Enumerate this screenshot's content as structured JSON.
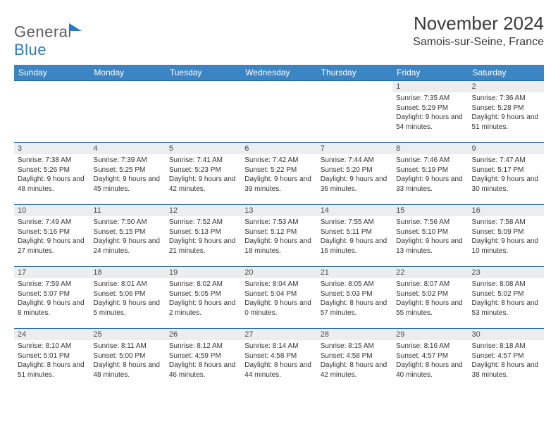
{
  "logo": {
    "general": "General",
    "blue": "Blue",
    "triangle_color": "#2a7ac0"
  },
  "title": "November 2024",
  "location": "Samois-sur-Seine, France",
  "header_bg": "#3b85c4",
  "header_fg": "#ffffff",
  "daynum_bg": "#ebedef",
  "border_color": "#2a6aa8",
  "day_headers": [
    "Sunday",
    "Monday",
    "Tuesday",
    "Wednesday",
    "Thursday",
    "Friday",
    "Saturday"
  ],
  "weeks": [
    [
      null,
      null,
      null,
      null,
      null,
      {
        "n": "1",
        "sr": "7:35 AM",
        "ss": "5:29 PM",
        "dl": "9 hours and 54 minutes."
      },
      {
        "n": "2",
        "sr": "7:36 AM",
        "ss": "5:28 PM",
        "dl": "9 hours and 51 minutes."
      }
    ],
    [
      {
        "n": "3",
        "sr": "7:38 AM",
        "ss": "5:26 PM",
        "dl": "9 hours and 48 minutes."
      },
      {
        "n": "4",
        "sr": "7:39 AM",
        "ss": "5:25 PM",
        "dl": "9 hours and 45 minutes."
      },
      {
        "n": "5",
        "sr": "7:41 AM",
        "ss": "5:23 PM",
        "dl": "9 hours and 42 minutes."
      },
      {
        "n": "6",
        "sr": "7:42 AM",
        "ss": "5:22 PM",
        "dl": "9 hours and 39 minutes."
      },
      {
        "n": "7",
        "sr": "7:44 AM",
        "ss": "5:20 PM",
        "dl": "9 hours and 36 minutes."
      },
      {
        "n": "8",
        "sr": "7:46 AM",
        "ss": "5:19 PM",
        "dl": "9 hours and 33 minutes."
      },
      {
        "n": "9",
        "sr": "7:47 AM",
        "ss": "5:17 PM",
        "dl": "9 hours and 30 minutes."
      }
    ],
    [
      {
        "n": "10",
        "sr": "7:49 AM",
        "ss": "5:16 PM",
        "dl": "9 hours and 27 minutes."
      },
      {
        "n": "11",
        "sr": "7:50 AM",
        "ss": "5:15 PM",
        "dl": "9 hours and 24 minutes."
      },
      {
        "n": "12",
        "sr": "7:52 AM",
        "ss": "5:13 PM",
        "dl": "9 hours and 21 minutes."
      },
      {
        "n": "13",
        "sr": "7:53 AM",
        "ss": "5:12 PM",
        "dl": "9 hours and 18 minutes."
      },
      {
        "n": "14",
        "sr": "7:55 AM",
        "ss": "5:11 PM",
        "dl": "9 hours and 16 minutes."
      },
      {
        "n": "15",
        "sr": "7:56 AM",
        "ss": "5:10 PM",
        "dl": "9 hours and 13 minutes."
      },
      {
        "n": "16",
        "sr": "7:58 AM",
        "ss": "5:09 PM",
        "dl": "9 hours and 10 minutes."
      }
    ],
    [
      {
        "n": "17",
        "sr": "7:59 AM",
        "ss": "5:07 PM",
        "dl": "9 hours and 8 minutes."
      },
      {
        "n": "18",
        "sr": "8:01 AM",
        "ss": "5:06 PM",
        "dl": "9 hours and 5 minutes."
      },
      {
        "n": "19",
        "sr": "8:02 AM",
        "ss": "5:05 PM",
        "dl": "9 hours and 2 minutes."
      },
      {
        "n": "20",
        "sr": "8:04 AM",
        "ss": "5:04 PM",
        "dl": "9 hours and 0 minutes."
      },
      {
        "n": "21",
        "sr": "8:05 AM",
        "ss": "5:03 PM",
        "dl": "8 hours and 57 minutes."
      },
      {
        "n": "22",
        "sr": "8:07 AM",
        "ss": "5:02 PM",
        "dl": "8 hours and 55 minutes."
      },
      {
        "n": "23",
        "sr": "8:08 AM",
        "ss": "5:02 PM",
        "dl": "8 hours and 53 minutes."
      }
    ],
    [
      {
        "n": "24",
        "sr": "8:10 AM",
        "ss": "5:01 PM",
        "dl": "8 hours and 51 minutes."
      },
      {
        "n": "25",
        "sr": "8:11 AM",
        "ss": "5:00 PM",
        "dl": "8 hours and 48 minutes."
      },
      {
        "n": "26",
        "sr": "8:12 AM",
        "ss": "4:59 PM",
        "dl": "8 hours and 46 minutes."
      },
      {
        "n": "27",
        "sr": "8:14 AM",
        "ss": "4:58 PM",
        "dl": "8 hours and 44 minutes."
      },
      {
        "n": "28",
        "sr": "8:15 AM",
        "ss": "4:58 PM",
        "dl": "8 hours and 42 minutes."
      },
      {
        "n": "29",
        "sr": "8:16 AM",
        "ss": "4:57 PM",
        "dl": "8 hours and 40 minutes."
      },
      {
        "n": "30",
        "sr": "8:18 AM",
        "ss": "4:57 PM",
        "dl": "8 hours and 38 minutes."
      }
    ]
  ],
  "labels": {
    "sunrise": "Sunrise: ",
    "sunset": "Sunset: ",
    "daylight": "Daylight: "
  }
}
